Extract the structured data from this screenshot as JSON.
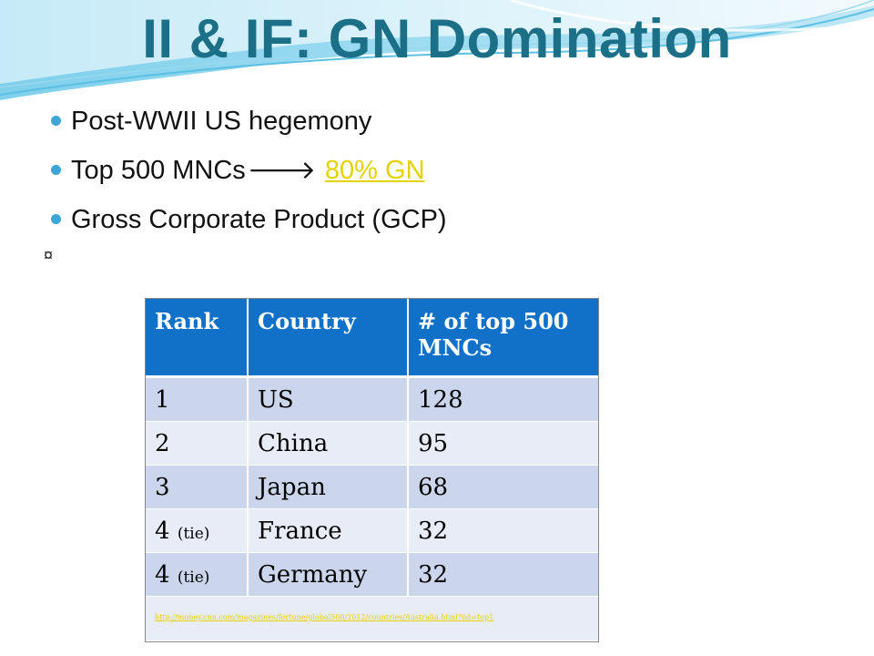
{
  "slide": {
    "title": "II & IF: GN Domination",
    "bullets": [
      {
        "text": "Post-WWII US hegemony"
      },
      {
        "text": "Top 500 MNCs",
        "arrow": "🡒",
        "link": "80% GN"
      },
      {
        "text": "Gross Corporate Product (GCP)"
      }
    ],
    "sub_symbol": "¤",
    "colors": {
      "title": "#1b6f86",
      "bullet_dot": "#3ca7d6",
      "table_header": "#1170c8",
      "row_dark": "#cbd6ec",
      "row_light": "#e8ecf6",
      "link": "#e6d200"
    }
  },
  "table": {
    "headers": [
      "Rank",
      "Country",
      "# of  top 500 MNCs"
    ],
    "rows": [
      {
        "rank": "1",
        "tie": "",
        "country": "US",
        "count": "128"
      },
      {
        "rank": "2",
        "tie": "",
        "country": "China",
        "count": "95"
      },
      {
        "rank": "3",
        "tie": "",
        "country": "Japan",
        "count": "68"
      },
      {
        "rank": "4",
        "tie": "(tie)",
        "country": "France",
        "count": "32"
      },
      {
        "rank": "4",
        "tie": "(tie)",
        "country": "Germany",
        "count": "32"
      }
    ],
    "source_url": "http://money.cnn.com/magazines/fortune/global500/2012/countries/Australia.html?iid=top1"
  }
}
